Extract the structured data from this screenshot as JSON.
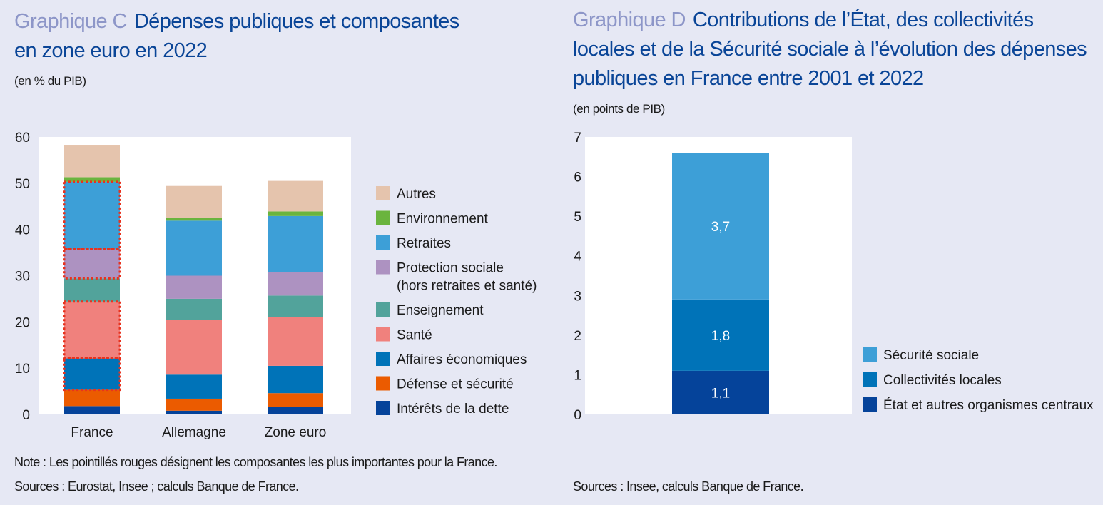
{
  "chart_c": {
    "label": "Graphique C",
    "title_line1": "Dépenses publiques et composantes",
    "title_line2": "en zone euro en 2022",
    "unit": "(en % du PIB)",
    "note": "Note : Les pointillés rouges désignent les composantes les plus importantes pour la France.",
    "sources": "Sources : Eurostat, Insee ; calculs Banque de France."
  },
  "chart_d": {
    "label": "Graphique D",
    "title_line1": "Contributions de l’État, des collectivités",
    "title_line2": "locales et de la Sécurité sociale à l’évolution des dépenses",
    "title_line3": "publiques en France entre 2001 et 2022",
    "unit": "(en points de PIB)",
    "sources": "Sources : Insee, calculs Banque de France."
  },
  "chart_data": [
    {
      "type": "bar",
      "stacked": true,
      "categories": [
        "France",
        "Allemagne",
        "Zone euro"
      ],
      "ylim": [
        0,
        60
      ],
      "yticks": [
        0,
        10,
        20,
        30,
        40,
        50,
        60
      ],
      "legend_placement": "right",
      "grid": false,
      "series": [
        {
          "name": "Intérêts de la dette",
          "color": "#05439a",
          "values": [
            1.8,
            0.8,
            1.6
          ]
        },
        {
          "name": "Défense et sécurité",
          "color": "#eb5b00",
          "values": [
            3.5,
            2.6,
            3.0
          ]
        },
        {
          "name": "Affaires économiques",
          "color": "#0073b8",
          "values": [
            6.8,
            5.2,
            5.9
          ]
        },
        {
          "name": "Santé",
          "color": "#f0817d",
          "values": [
            12.3,
            11.8,
            10.6
          ]
        },
        {
          "name": "Enseignement",
          "color": "#52a39b",
          "values": [
            5.0,
            4.6,
            4.6
          ]
        },
        {
          "name": "Protection sociale",
          "name_line2": "(hors retraites et santé)",
          "color": "#ad92c1",
          "values": [
            6.3,
            5.0,
            5.0
          ]
        },
        {
          "name": "Retraites",
          "color": "#3d9fd7",
          "values": [
            14.6,
            11.9,
            12.2
          ]
        },
        {
          "name": "Environnement",
          "color": "#6ab43e",
          "values": [
            1.0,
            0.6,
            1.0
          ]
        },
        {
          "name": "Autres",
          "color": "#e5c4ad",
          "values": [
            7.0,
            6.9,
            6.6
          ]
        }
      ],
      "highlighted": {
        "category": "France",
        "series": [
          "Affaires économiques",
          "Santé",
          "Protection sociale",
          "Retraites"
        ],
        "color": "#e8321e"
      }
    },
    {
      "type": "bar",
      "stacked": true,
      "categories": [
        ""
      ],
      "ylim": [
        0,
        7
      ],
      "yticks": [
        0,
        1,
        2,
        3,
        4,
        5,
        6,
        7
      ],
      "legend_placement": "right",
      "grid": false,
      "series": [
        {
          "name": "État et autres organismes centraux",
          "color": "#05439a",
          "values": [
            1.1
          ],
          "label": "1,1"
        },
        {
          "name": "Collectivités locales",
          "color": "#0073b8",
          "values": [
            1.8
          ],
          "label": "1,8"
        },
        {
          "name": "Sécurité sociale",
          "color": "#3d9fd7",
          "values": [
            3.7
          ],
          "label": "3,7"
        }
      ]
    }
  ]
}
